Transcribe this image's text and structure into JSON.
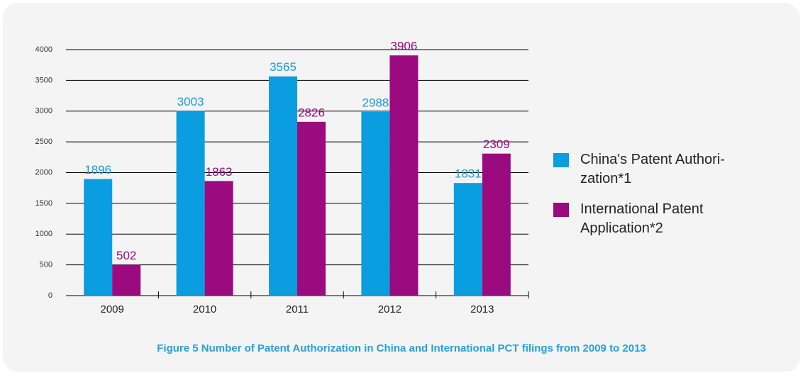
{
  "chart_data": {
    "type": "bar",
    "title": "Figure 5 Number of Patent Authorization in China and International PCT filings from 2009 to 2013",
    "categories": [
      "2009",
      "2010",
      "2011",
      "2012",
      "2013"
    ],
    "series": [
      {
        "name": "China's Patent Authori­zation*1",
        "color": "#0a9de0",
        "label_color": "#1a9ad6",
        "values": [
          1896,
          3003,
          3565,
          2988,
          1831
        ]
      },
      {
        "name": "International Patent Application*2",
        "color": "#9b0a7e",
        "label_color": "#9b0a7e",
        "values": [
          502,
          1863,
          2826,
          3906,
          2309
        ]
      }
    ],
    "ylim": [
      0,
      4000
    ],
    "yticks": [
      0,
      500,
      1000,
      1500,
      2000,
      2500,
      3000,
      3500,
      4000
    ],
    "grid": true,
    "legend": "right"
  }
}
